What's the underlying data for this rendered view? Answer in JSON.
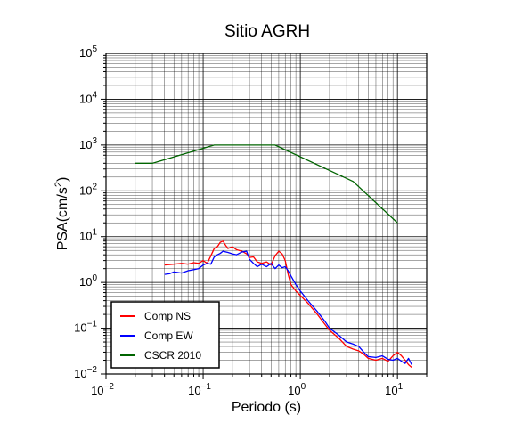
{
  "chart_data": {
    "type": "line",
    "title": "Sitio AGRH",
    "xlabel": "Periodo (s)",
    "ylabel_main": "PSA(cm/s",
    "ylabel_sup": "2",
    "ylabel_tail": ")",
    "x_scale": "log",
    "y_scale": "log",
    "xlim": [
      0.01,
      20
    ],
    "ylim": [
      0.01,
      100000
    ],
    "grid": true,
    "legend_position": "bottom-left",
    "x_ticks": [
      {
        "value": 0.01,
        "base": "10",
        "exp": "−2"
      },
      {
        "value": 0.1,
        "base": "10",
        "exp": "−1"
      },
      {
        "value": 1,
        "base": "10",
        "exp": "0"
      },
      {
        "value": 10,
        "base": "10",
        "exp": "1"
      }
    ],
    "y_ticks": [
      {
        "value": 0.01,
        "base": "10",
        "exp": "−2"
      },
      {
        "value": 0.1,
        "base": "10",
        "exp": "−1"
      },
      {
        "value": 1,
        "base": "10",
        "exp": "0"
      },
      {
        "value": 10,
        "base": "10",
        "exp": "1"
      },
      {
        "value": 100,
        "base": "10",
        "exp": "2"
      },
      {
        "value": 1000,
        "base": "10",
        "exp": "3"
      },
      {
        "value": 10000,
        "base": "10",
        "exp": "4"
      },
      {
        "value": 100000,
        "base": "10",
        "exp": "5"
      }
    ],
    "series": [
      {
        "name": "Comp NS",
        "color": "#ff0000",
        "points": [
          [
            0.04,
            2.4
          ],
          [
            0.05,
            2.5
          ],
          [
            0.06,
            2.6
          ],
          [
            0.07,
            2.5
          ],
          [
            0.08,
            2.7
          ],
          [
            0.09,
            2.6
          ],
          [
            0.1,
            3.0
          ],
          [
            0.11,
            2.6
          ],
          [
            0.12,
            3.8
          ],
          [
            0.13,
            5.5
          ],
          [
            0.14,
            6.0
          ],
          [
            0.15,
            7.5
          ],
          [
            0.16,
            8.0
          ],
          [
            0.17,
            6.5
          ],
          [
            0.18,
            5.5
          ],
          [
            0.2,
            6.0
          ],
          [
            0.22,
            5.2
          ],
          [
            0.25,
            4.8
          ],
          [
            0.28,
            4.2
          ],
          [
            0.3,
            3.5
          ],
          [
            0.33,
            3.6
          ],
          [
            0.36,
            2.8
          ],
          [
            0.4,
            2.6
          ],
          [
            0.45,
            2.8
          ],
          [
            0.5,
            2.4
          ],
          [
            0.55,
            3.8
          ],
          [
            0.6,
            4.8
          ],
          [
            0.65,
            4.2
          ],
          [
            0.7,
            3.0
          ],
          [
            0.75,
            1.5
          ],
          [
            0.8,
            0.9
          ],
          [
            0.9,
            0.65
          ],
          [
            1.0,
            0.52
          ],
          [
            1.2,
            0.35
          ],
          [
            1.5,
            0.2
          ],
          [
            1.8,
            0.12
          ],
          [
            2.0,
            0.09
          ],
          [
            2.5,
            0.06
          ],
          [
            3.0,
            0.04
          ],
          [
            3.5,
            0.035
          ],
          [
            4.0,
            0.032
          ],
          [
            4.5,
            0.027
          ],
          [
            5.0,
            0.022
          ],
          [
            6.0,
            0.02
          ],
          [
            7.0,
            0.022
          ],
          [
            8.0,
            0.019
          ],
          [
            9.0,
            0.025
          ],
          [
            10.0,
            0.03
          ],
          [
            11.0,
            0.025
          ],
          [
            12.0,
            0.02
          ],
          [
            13.0,
            0.016
          ],
          [
            14.0,
            0.014
          ]
        ]
      },
      {
        "name": "Comp EW",
        "color": "#0000ff",
        "points": [
          [
            0.04,
            1.5
          ],
          [
            0.045,
            1.55
          ],
          [
            0.05,
            1.7
          ],
          [
            0.06,
            1.6
          ],
          [
            0.07,
            1.8
          ],
          [
            0.08,
            1.9
          ],
          [
            0.09,
            2.0
          ],
          [
            0.1,
            2.4
          ],
          [
            0.11,
            2.6
          ],
          [
            0.12,
            2.5
          ],
          [
            0.13,
            3.6
          ],
          [
            0.14,
            4.0
          ],
          [
            0.15,
            4.3
          ],
          [
            0.16,
            4.8
          ],
          [
            0.18,
            4.5
          ],
          [
            0.2,
            4.2
          ],
          [
            0.22,
            4.0
          ],
          [
            0.25,
            4.6
          ],
          [
            0.28,
            4.8
          ],
          [
            0.3,
            3.2
          ],
          [
            0.33,
            2.6
          ],
          [
            0.36,
            2.2
          ],
          [
            0.4,
            2.5
          ],
          [
            0.45,
            2.2
          ],
          [
            0.5,
            2.6
          ],
          [
            0.55,
            2.0
          ],
          [
            0.6,
            2.4
          ],
          [
            0.65,
            2.1
          ],
          [
            0.7,
            2.2
          ],
          [
            0.75,
            1.8
          ],
          [
            0.8,
            1.4
          ],
          [
            0.9,
            0.9
          ],
          [
            1.0,
            0.65
          ],
          [
            1.2,
            0.4
          ],
          [
            1.5,
            0.23
          ],
          [
            1.8,
            0.14
          ],
          [
            2.0,
            0.1
          ],
          [
            2.5,
            0.07
          ],
          [
            3.0,
            0.05
          ],
          [
            3.5,
            0.045
          ],
          [
            4.0,
            0.04
          ],
          [
            4.5,
            0.03
          ],
          [
            5.0,
            0.024
          ],
          [
            6.0,
            0.023
          ],
          [
            7.0,
            0.025
          ],
          [
            8.0,
            0.021
          ],
          [
            9.0,
            0.02
          ],
          [
            10.0,
            0.022
          ],
          [
            11.0,
            0.019
          ],
          [
            12.0,
            0.017
          ],
          [
            13.0,
            0.022
          ],
          [
            14.0,
            0.016
          ]
        ]
      },
      {
        "name": "CSCR 2010",
        "color": "#006400",
        "points": [
          [
            0.02,
            400
          ],
          [
            0.03,
            400
          ],
          [
            0.13,
            1000
          ],
          [
            0.55,
            1000
          ],
          [
            3.5,
            160
          ],
          [
            10.0,
            20
          ]
        ]
      }
    ]
  }
}
